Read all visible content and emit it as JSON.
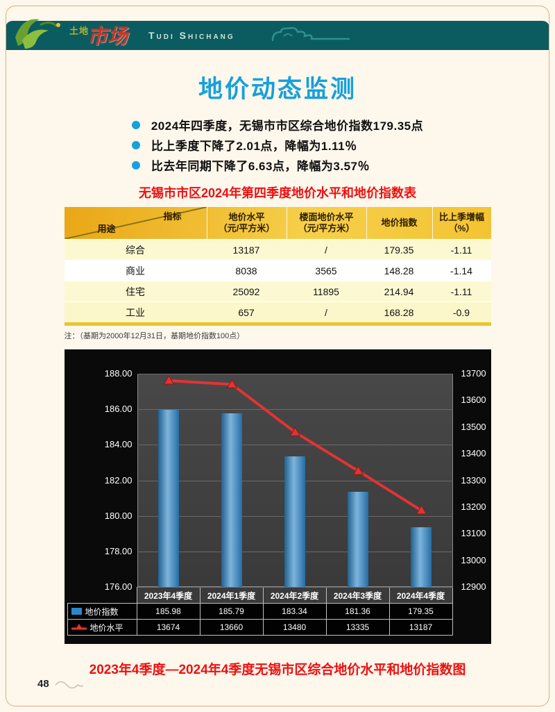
{
  "page": {
    "number": "48"
  },
  "header": {
    "logo_cn_top": "土地",
    "logo_cn_main": "市场",
    "logo_en": "Tudi Shichang"
  },
  "title": "地价动态监测",
  "bullets": [
    "2024年四季度，无锡市市区综合地价指数179.35点",
    "比上季度下降了2.01点，降幅为1.11％",
    "比去年同期下降了6.63点，降幅为3.57％"
  ],
  "table": {
    "title": "无锡市市区2024年第四季度地价水平和地价指数表",
    "corner_top": "指标",
    "corner_bottom": "用途",
    "headers": [
      "地价水平\n（元/平方米）",
      "楼面地价水平\n（元/平方米）",
      "地价指数",
      "比上季增幅\n（%）"
    ],
    "rows": [
      {
        "use": "综合",
        "price": "13187",
        "floor": "/",
        "index": "179.35",
        "change": "-1.11"
      },
      {
        "use": "商业",
        "price": "8038",
        "floor": "3565",
        "index": "148.28",
        "change": "-1.14"
      },
      {
        "use": "住宅",
        "price": "25092",
        "floor": "11895",
        "index": "214.94",
        "change": "-1.11"
      },
      {
        "use": "工业",
        "price": "657",
        "floor": "/",
        "index": "168.28",
        "change": "-0.9"
      }
    ],
    "note": "注：（基期为2000年12月31日，基期地价指数100点）"
  },
  "chart_data": {
    "type": "bar+line",
    "categories": [
      "2023年4季度",
      "2024年1季度",
      "2024年2季度",
      "2024年3季度",
      "2024年4季度"
    ],
    "series": [
      {
        "name": "地价指数",
        "type": "bar",
        "axis": "left",
        "color": "#2e86c8",
        "values": [
          185.98,
          185.79,
          183.34,
          181.36,
          179.35
        ]
      },
      {
        "name": "地价水平",
        "type": "line",
        "axis": "right",
        "color": "#e23333",
        "values": [
          13674,
          13660,
          13480,
          13335,
          13187
        ]
      }
    ],
    "left_axis": {
      "min": 176,
      "max": 188,
      "step": 2,
      "ticks": [
        "188.00",
        "186.00",
        "184.00",
        "182.00",
        "180.00",
        "178.00",
        "176.00"
      ]
    },
    "right_axis": {
      "min": 12900,
      "max": 13700,
      "step": 100,
      "ticks": [
        "13700",
        "13600",
        "13500",
        "13400",
        "13300",
        "13200",
        "13100",
        "13000",
        "12900"
      ]
    },
    "grid": true,
    "legend_position": "bottom-table",
    "plot_bg": "#3f3f3f",
    "chart_bg": "#0a0a0a"
  },
  "chart_caption": "2023年4季度—2024年4季度无锡市区综合地价水平和地价指数图"
}
